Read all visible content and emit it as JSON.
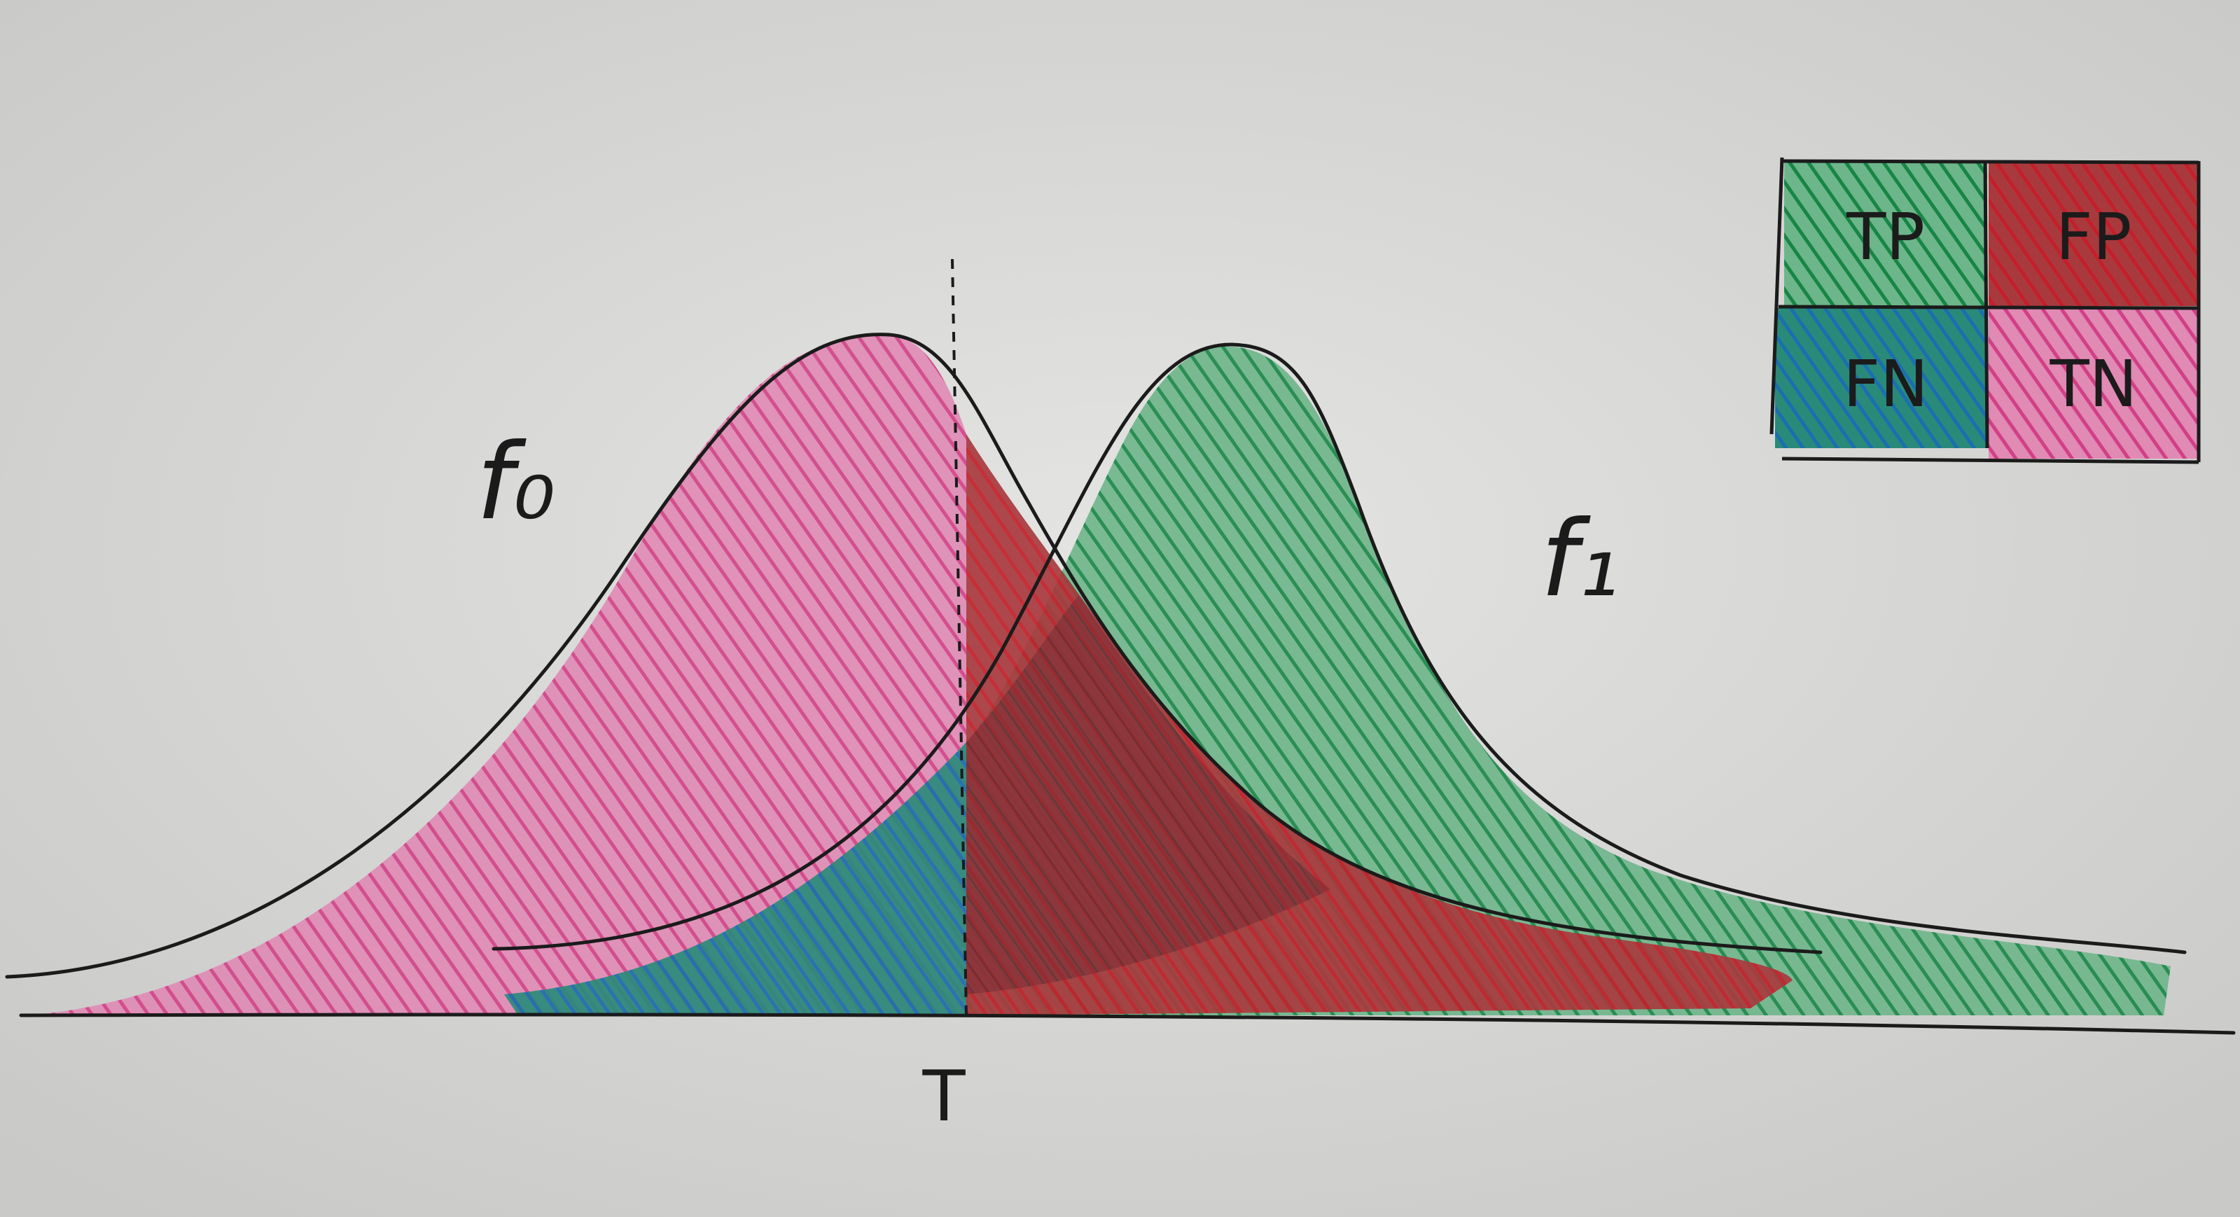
{
  "labels": {
    "f0": "f₀",
    "f1": "f₁",
    "threshold": "T"
  },
  "legend": {
    "tp": "TP",
    "fp": "FP",
    "fn": "FN",
    "tn": "TN"
  },
  "colors": {
    "paper": "#d8d8d6",
    "tn_pink": "#d6478c",
    "fp_red": "#c8262f",
    "fn_blue": "#1c78a8",
    "tp_green": "#1f8a4a",
    "ink": "#1b1b1b"
  }
}
